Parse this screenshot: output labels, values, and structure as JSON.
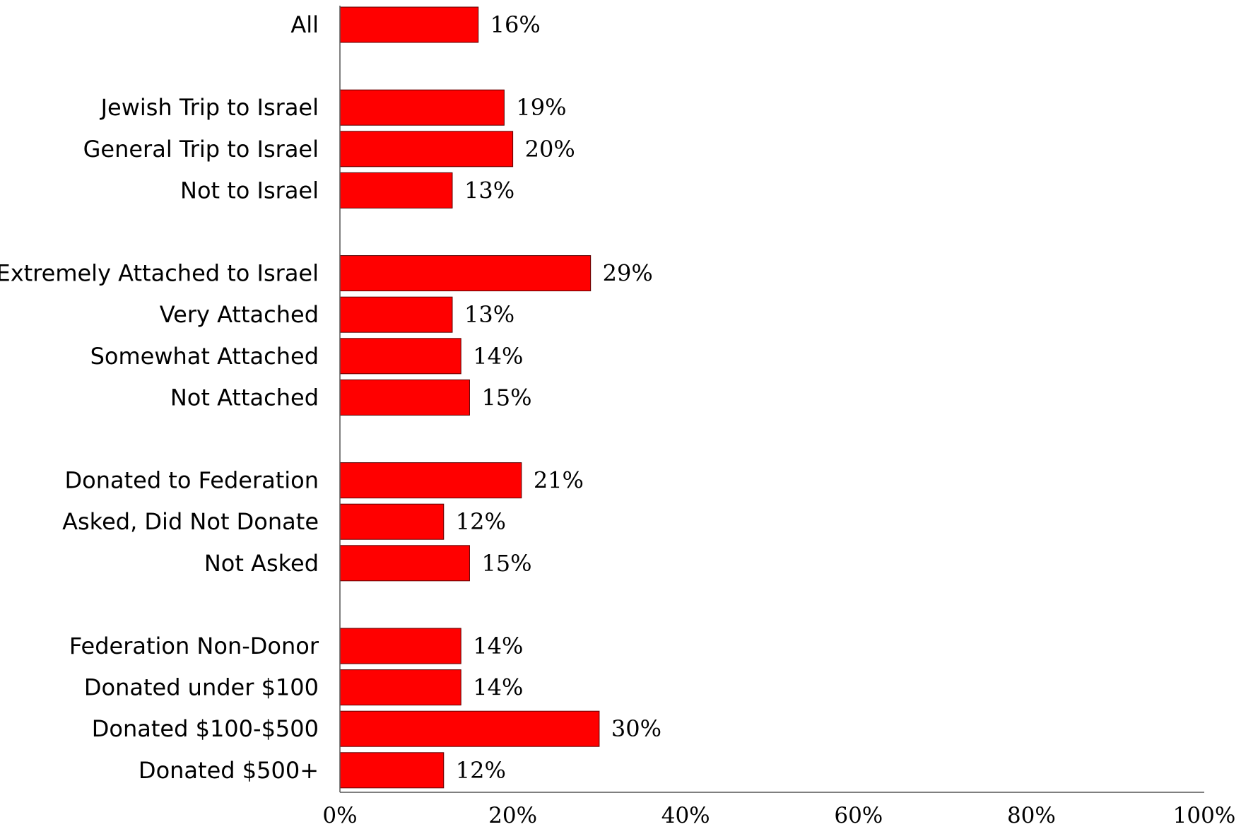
{
  "chart_data": {
    "type": "bar",
    "orientation": "horizontal",
    "categories": [
      "All",
      "Jewish Trip to Israel",
      "General Trip to Israel",
      "Not to Israel",
      "Extremely Attached to Israel",
      "Very Attached",
      "Somewhat Attached",
      "Not Attached",
      "Donated to Federation",
      "Asked, Did Not Donate",
      "Not Asked",
      "Federation Non-Donor",
      "Donated under $100",
      "Donated $100-$500",
      "Donated $500+"
    ],
    "values": [
      16,
      19,
      20,
      13,
      29,
      13,
      14,
      15,
      21,
      12,
      15,
      14,
      14,
      30,
      12
    ],
    "data_labels": [
      "16%",
      "19%",
      "20%",
      "13%",
      "29%",
      "13%",
      "14%",
      "15%",
      "21%",
      "12%",
      "15%",
      "14%",
      "14%",
      "30%",
      "12%"
    ],
    "groups": [
      [
        0
      ],
      [
        1,
        2,
        3
      ],
      [
        4,
        5,
        6,
        7
      ],
      [
        8,
        9,
        10
      ],
      [
        11,
        12,
        13,
        14
      ]
    ],
    "xlim": [
      0,
      100
    ],
    "x_ticks": [
      0,
      20,
      40,
      60,
      80,
      100
    ],
    "x_tick_labels": [
      "0%",
      "20%",
      "40%",
      "60%",
      "80%",
      "100%"
    ],
    "title": "",
    "xlabel": "",
    "ylabel": "",
    "grid": false,
    "legend": "none",
    "bar_color": "#ff0000"
  }
}
